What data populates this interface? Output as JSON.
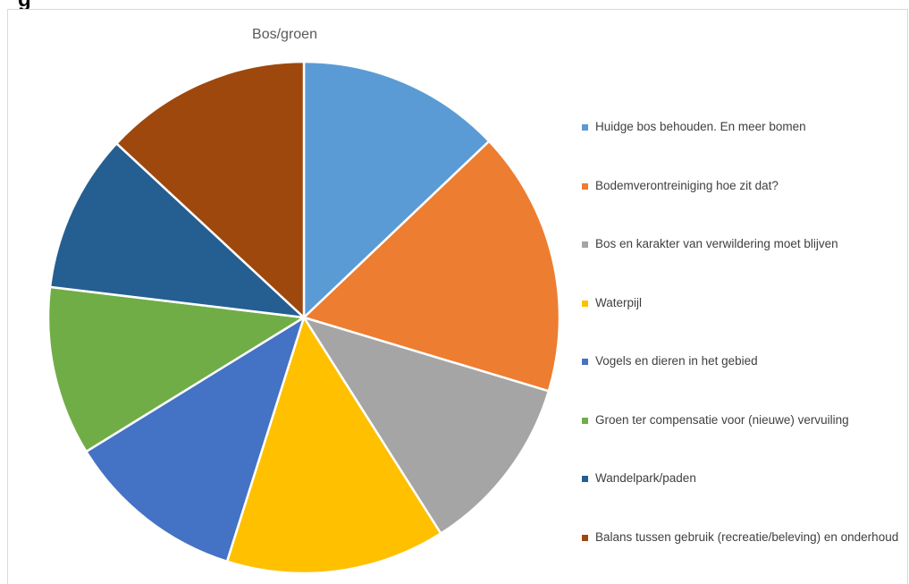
{
  "page": {
    "cut_title": "g"
  },
  "chart_data": {
    "type": "pie",
    "title": "Bos/groen",
    "legend_position": "right",
    "categories": [
      "Huidge bos behouden.  En meer bomen",
      "Bodemverontreiniging hoe zit dat?",
      "Bos en karakter van verwildering moet blijven",
      "Waterpijl",
      "Vogels en dieren in het gebied",
      "Groen ter compensatie voor (nieuwe) vervuiling",
      "Wandelpark/paden",
      "Balans tussen gebruik (recreatie/beleving) en onderhoud"
    ],
    "values": [
      13.4,
      17.4,
      11.8,
      14.4,
      11.8,
      11.1,
      10.4,
      13.6
    ],
    "colors": [
      "#5B9BD5",
      "#ED7D31",
      "#A5A5A5",
      "#FFC000",
      "#4472C4",
      "#70AD47",
      "#255E91",
      "#9E480E"
    ]
  }
}
